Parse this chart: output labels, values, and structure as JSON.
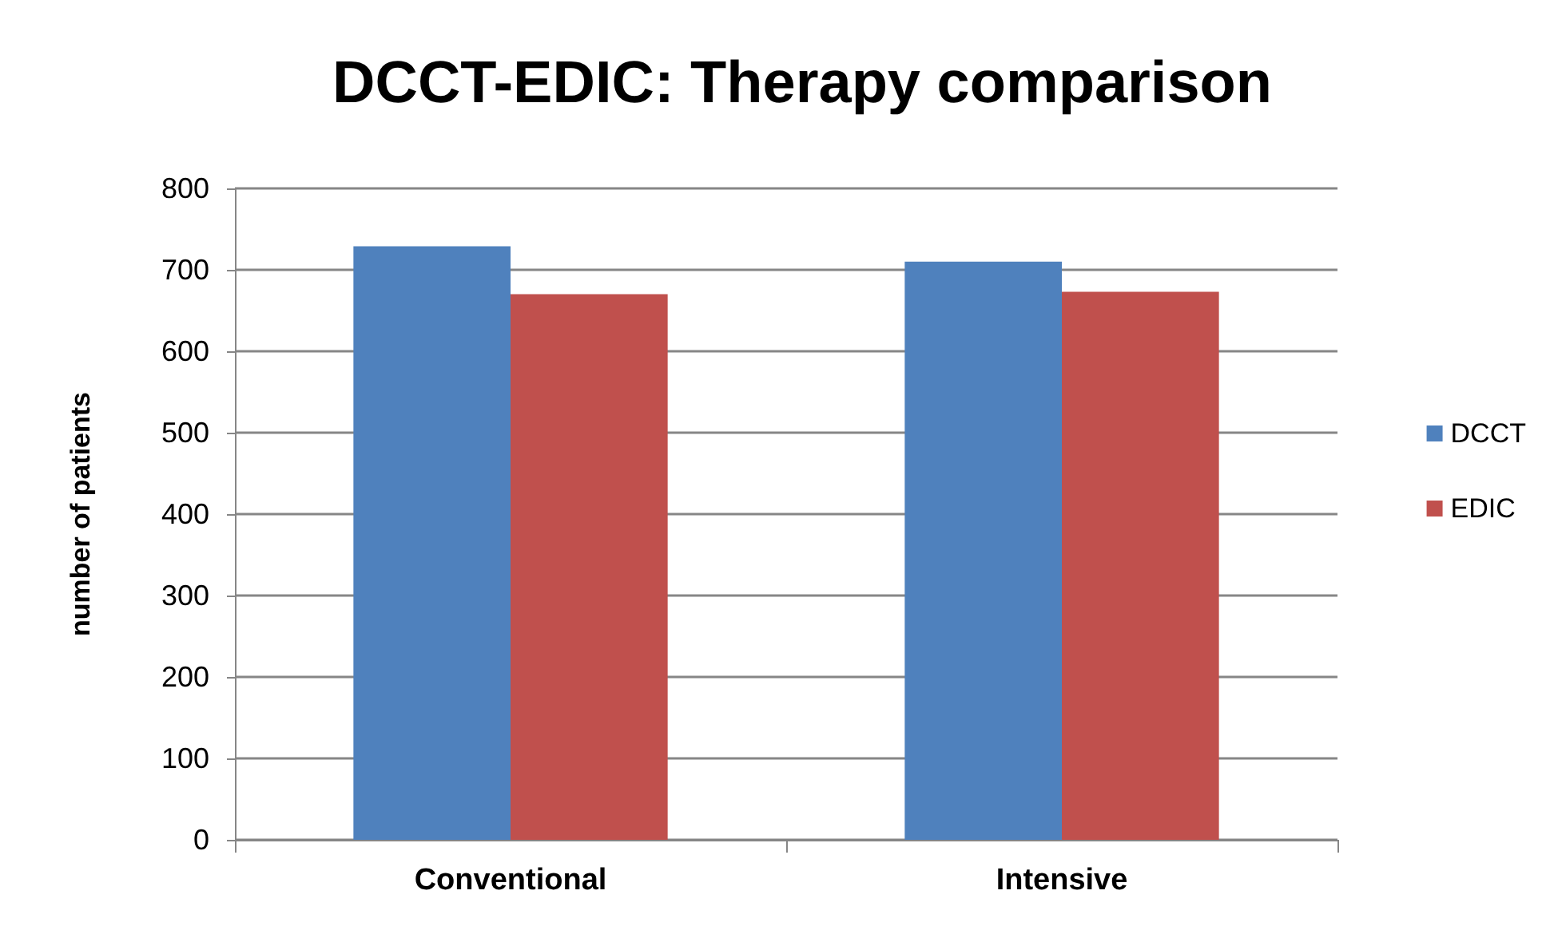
{
  "chart_data": {
    "type": "bar",
    "title": "DCCT-EDIC: Therapy comparison",
    "ylabel": "number of patients",
    "categories": [
      "Conventional",
      "Intensive"
    ],
    "series": [
      {
        "name": "DCCT",
        "color": "#4f81bd",
        "values": [
          729,
          710
        ]
      },
      {
        "name": "EDIC",
        "color": "#c0504d",
        "values": [
          670,
          673
        ]
      }
    ],
    "ylim": [
      0,
      800
    ],
    "yticks": [
      0,
      100,
      200,
      300,
      400,
      500,
      600,
      700,
      800
    ],
    "grid": "y",
    "legend": "right"
  }
}
